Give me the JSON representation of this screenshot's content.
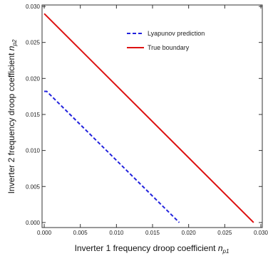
{
  "chart_data": {
    "type": "line",
    "x_ticks": [
      "0.000",
      "0.005",
      "0.010",
      "0.015",
      "0.020",
      "0.025",
      "0.030"
    ],
    "y_ticks": [
      "0.000",
      "0.005",
      "0.010",
      "0.015",
      "0.020",
      "0.025",
      "0.030"
    ],
    "xlim": [
      -0.0003,
      0.0302
    ],
    "ylim": [
      -0.0007,
      0.0302
    ],
    "xlabel": {
      "text": "Inverter 1 frequency droop coefficient ",
      "var": "n",
      "sub": "p1"
    },
    "ylabel": {
      "text": "Inverter 2 frequency droop coefficient ",
      "var": "n",
      "sub": "p2"
    },
    "legend_position": "top-right inside",
    "grid": false,
    "series": [
      {
        "name": "Lyapunov prediction",
        "color": "#2222dd",
        "dash": "dashed",
        "x": [
          0.0,
          0.00035,
          0.0183,
          0.0187
        ],
        "y": [
          0.0182,
          0.0182,
          0.0004,
          0.0
        ]
      },
      {
        "name": "True boundary",
        "color": "#dd1111",
        "dash": "solid",
        "x": [
          0.0,
          0.029
        ],
        "y": [
          0.029,
          0.0
        ]
      }
    ]
  }
}
